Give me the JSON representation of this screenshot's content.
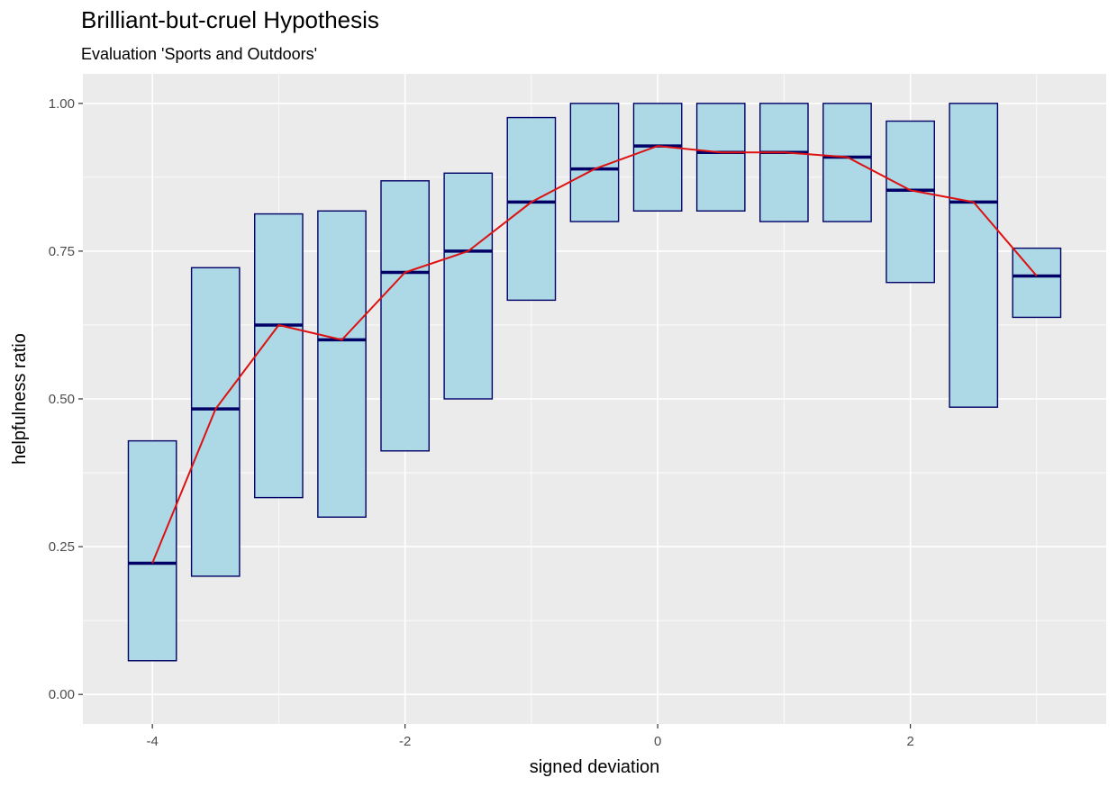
{
  "chart_data": {
    "type": "boxplot",
    "title": "Brilliant-but-cruel Hypothesis",
    "subtitle": "Evaluation 'Sports and Outdoors'",
    "xlabel": "signed deviation",
    "ylabel": "helpfulness ratio",
    "xlim": [
      -4.55,
      3.55
    ],
    "ylim": [
      -0.05,
      1.05
    ],
    "x_ticks": [
      -4,
      -2,
      0,
      2
    ],
    "x_tick_labels": [
      "-4",
      "-2",
      "0",
      "2"
    ],
    "y_ticks": [
      0,
      0.25,
      0.5,
      0.75,
      1
    ],
    "y_tick_labels": [
      "0.00",
      "0.25",
      "0.50",
      "0.75",
      "1.00"
    ],
    "grid": true,
    "box_fill": "#add8e6",
    "box_stroke": "#000066",
    "line_color": "#dd1111",
    "panel_color": "#ebebeb",
    "boxes": [
      {
        "x": -4.0,
        "lower": 0.057,
        "median": 0.222,
        "upper": 0.429
      },
      {
        "x": -3.5,
        "lower": 0.2,
        "median": 0.483,
        "upper": 0.722
      },
      {
        "x": -3.0,
        "lower": 0.333,
        "median": 0.625,
        "upper": 0.813
      },
      {
        "x": -2.5,
        "lower": 0.3,
        "median": 0.6,
        "upper": 0.818
      },
      {
        "x": -2.0,
        "lower": 0.412,
        "median": 0.714,
        "upper": 0.869
      },
      {
        "x": -1.5,
        "lower": 0.5,
        "median": 0.75,
        "upper": 0.882
      },
      {
        "x": -1.0,
        "lower": 0.667,
        "median": 0.833,
        "upper": 0.976
      },
      {
        "x": -0.5,
        "lower": 0.8,
        "median": 0.889,
        "upper": 1.0
      },
      {
        "x": 0.0,
        "lower": 0.818,
        "median": 0.928,
        "upper": 1.0
      },
      {
        "x": 0.5,
        "lower": 0.818,
        "median": 0.917,
        "upper": 1.0
      },
      {
        "x": 1.0,
        "lower": 0.8,
        "median": 0.917,
        "upper": 1.0
      },
      {
        "x": 1.5,
        "lower": 0.8,
        "median": 0.909,
        "upper": 1.0
      },
      {
        "x": 2.0,
        "lower": 0.697,
        "median": 0.853,
        "upper": 0.97
      },
      {
        "x": 2.5,
        "lower": 0.486,
        "median": 0.833,
        "upper": 1.0
      },
      {
        "x": 3.0,
        "lower": 0.638,
        "median": 0.708,
        "upper": 0.755
      }
    ]
  }
}
